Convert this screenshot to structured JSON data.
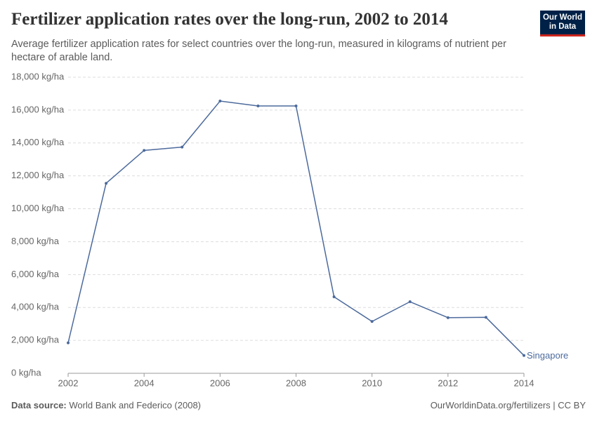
{
  "chart_data": {
    "type": "line",
    "title": "Fertilizer application rates over the long-run, 2002 to 2014",
    "subtitle": "Average fertilizer application rates for select countries over the long-run, measured in kilograms of nutrient per hectare of arable land.",
    "logo": [
      "Our World",
      "in Data"
    ],
    "source_label": "Data source:",
    "source": "World Bank and Federico (2008)",
    "credit": "OurWorldinData.org/fertilizers | CC BY",
    "x": [
      2002,
      2003,
      2004,
      2005,
      2006,
      2007,
      2008,
      2009,
      2010,
      2011,
      2012,
      2013,
      2014
    ],
    "series": [
      {
        "name": "Singapore",
        "color": "#4c6a9c",
        "values": [
          1850,
          11550,
          13550,
          13750,
          16550,
          16250,
          16250,
          4650,
          3150,
          4350,
          3380,
          3400,
          1080
        ]
      }
    ],
    "xlim": [
      2002,
      2014
    ],
    "xticks": [
      2002,
      2004,
      2006,
      2008,
      2010,
      2012,
      2014
    ],
    "ylim": [
      0,
      18000
    ],
    "yticks": [
      {
        "value": 0,
        "label": "0 kg/ha"
      },
      {
        "value": 2000,
        "label": "2,000 kg/ha"
      },
      {
        "value": 4000,
        "label": "4,000 kg/ha"
      },
      {
        "value": 6000,
        "label": "6,000 kg/ha"
      },
      {
        "value": 8000,
        "label": "8,000 kg/ha"
      },
      {
        "value": 10000,
        "label": "10,000 kg/ha"
      },
      {
        "value": 12000,
        "label": "12,000 kg/ha"
      },
      {
        "value": 14000,
        "label": "14,000 kg/ha"
      },
      {
        "value": 16000,
        "label": "16,000 kg/ha"
      },
      {
        "value": 18000,
        "label": "18,000 kg/ha"
      }
    ],
    "grid": true
  }
}
